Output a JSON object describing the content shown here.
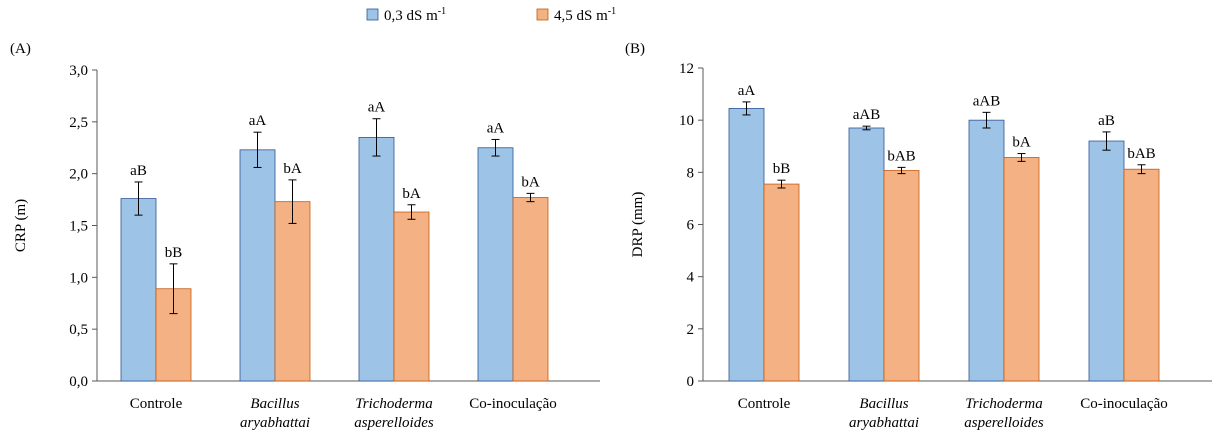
{
  "legend": {
    "series": [
      {
        "name": "0,3 dS m",
        "sup": "-1",
        "color": "#9DC3E6"
      },
      {
        "name": "4,5 dS m",
        "sup": "-1",
        "color": "#F4B183"
      }
    ]
  },
  "chart_data": [
    {
      "type": "bar",
      "panel_label": "(A)",
      "ylabel": "CRP (m)",
      "xlabel": "",
      "ylim": [
        0,
        3.0
      ],
      "yticks": [
        "0,0",
        "0,5",
        "1,0",
        "1,5",
        "2,0",
        "2,5",
        "3,0"
      ],
      "categories": [
        {
          "lines": [
            "Controle"
          ],
          "italic": false
        },
        {
          "lines": [
            "Bacillus",
            "aryabhattai"
          ],
          "italic": true
        },
        {
          "lines": [
            "Trichoderma",
            "asperelloides"
          ],
          "italic": true
        },
        {
          "lines": [
            "Co-inoculação"
          ],
          "italic": false
        }
      ],
      "series": [
        {
          "name": "0,3 dS m-1",
          "color": "#9DC3E6",
          "values": [
            1.76,
            2.23,
            2.35,
            2.25
          ],
          "errors": [
            0.16,
            0.17,
            0.18,
            0.08
          ],
          "labels": [
            "aB",
            "aA",
            "aA",
            "aA"
          ]
        },
        {
          "name": "4,5 dS m-1",
          "color": "#F4B183",
          "values": [
            0.89,
            1.73,
            1.63,
            1.77
          ],
          "errors": [
            0.24,
            0.21,
            0.07,
            0.04
          ],
          "labels": [
            "bB",
            "bA",
            "bA",
            "bA"
          ]
        }
      ],
      "grid": false
    },
    {
      "type": "bar",
      "panel_label": "(B)",
      "ylabel": "DRP (mm)",
      "xlabel": "",
      "ylim": [
        0,
        12
      ],
      "yticks": [
        "0",
        "2",
        "4",
        "6",
        "8",
        "10",
        "12"
      ],
      "categories": [
        {
          "lines": [
            "Controle"
          ],
          "italic": false
        },
        {
          "lines": [
            "Bacillus",
            "aryabhattai"
          ],
          "italic": true
        },
        {
          "lines": [
            "Trichoderma",
            "asperelloides"
          ],
          "italic": true
        },
        {
          "lines": [
            "Co-inoculação"
          ],
          "italic": false
        }
      ],
      "series": [
        {
          "name": "0,3 dS m-1",
          "color": "#9DC3E6",
          "values": [
            10.45,
            9.7,
            10.0,
            9.2
          ],
          "errors": [
            0.25,
            0.07,
            0.3,
            0.35
          ],
          "labels": [
            "aA",
            "aAB",
            "aAB",
            "aB"
          ]
        },
        {
          "name": "4,5 dS m-1",
          "color": "#F4B183",
          "values": [
            7.55,
            8.07,
            8.57,
            8.12
          ],
          "errors": [
            0.15,
            0.12,
            0.15,
            0.17
          ],
          "labels": [
            "bB",
            "bAB",
            "bA",
            "bAB"
          ]
        }
      ],
      "grid": false
    }
  ]
}
